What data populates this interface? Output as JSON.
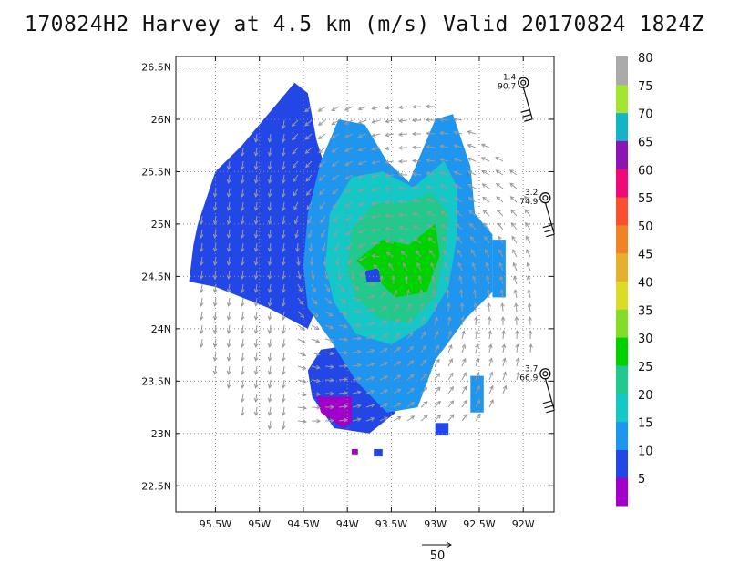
{
  "title": "170824H2 Harvey at 4.5 km (m/s) Valid 20170824 1824Z",
  "map": {
    "lon_range": [
      -95.95,
      -91.65
    ],
    "lat_range": [
      22.25,
      26.6
    ],
    "x_ticks": [
      {
        "lon": -95.5,
        "label": "95.5W"
      },
      {
        "lon": -95.0,
        "label": "95W"
      },
      {
        "lon": -94.5,
        "label": "94.5W"
      },
      {
        "lon": -94.0,
        "label": "94W"
      },
      {
        "lon": -93.5,
        "label": "93.5W"
      },
      {
        "lon": -93.0,
        "label": "93W"
      },
      {
        "lon": -92.5,
        "label": "92.5W"
      },
      {
        "lon": -92.0,
        "label": "92W"
      }
    ],
    "y_ticks": [
      {
        "lat": 26.5,
        "label": "26.5N"
      },
      {
        "lat": 26.0,
        "label": "26N"
      },
      {
        "lat": 25.5,
        "label": "25.5N"
      },
      {
        "lat": 25.0,
        "label": "25N"
      },
      {
        "lat": 24.5,
        "label": "24.5N"
      },
      {
        "lat": 24.0,
        "label": "24N"
      },
      {
        "lat": 23.5,
        "label": "23.5N"
      },
      {
        "lat": 23.0,
        "label": "23N"
      },
      {
        "lat": 22.5,
        "label": "22.5N"
      }
    ],
    "grid": "dotted",
    "storm_center": {
      "lon": -93.75,
      "lat": 24.5
    }
  },
  "colorbar": {
    "levels": [
      "5",
      "10",
      "15",
      "20",
      "25",
      "30",
      "35",
      "40",
      "45",
      "50",
      "55",
      "60",
      "65",
      "70",
      "75",
      "80"
    ],
    "colors": [
      "#a000c8",
      "#2346e6",
      "#1e96f0",
      "#14c8c8",
      "#22c88c",
      "#00d200",
      "#82dc28",
      "#dcdc28",
      "#e6af2d",
      "#f08228",
      "#fa5032",
      "#f00a78",
      "#8c14b4",
      "#14b4c8",
      "#a0e632",
      "#aaaaaa"
    ]
  },
  "observations": [
    {
      "lon": -92.0,
      "lat": 26.35,
      "value_top": "1.4",
      "value_bottom": "90.7"
    },
    {
      "lon": -91.75,
      "lat": 25.25,
      "value_top": "3.2",
      "value_bottom": "74.9"
    },
    {
      "lon": -91.75,
      "lat": 23.57,
      "value_top": "3.7",
      "value_bottom": "66.9"
    }
  ],
  "reference_vector": {
    "label": "50"
  }
}
